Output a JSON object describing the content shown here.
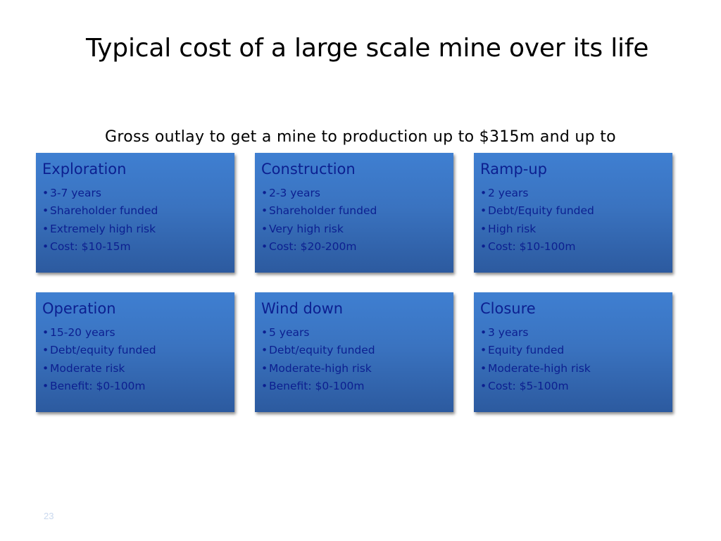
{
  "slide": {
    "title": "Typical cost of a large scale mine over its life",
    "subtitle": "Gross outlay to get a mine to production up to $315m and up to",
    "page_number": "23",
    "bullet_glyph": "•"
  },
  "cards": [
    {
      "title": "Exploration",
      "items": [
        "3-7 years",
        "Shareholder funded",
        "Extremely high risk",
        "Cost: $10-15m"
      ]
    },
    {
      "title": "Construction",
      "items": [
        "2-3 years",
        "Shareholder funded",
        "Very high risk",
        "Cost: $20-200m"
      ]
    },
    {
      "title": "Ramp-up",
      "items": [
        "2 years",
        "Debt/Equity funded",
        "High risk",
        "Cost: $10-100m"
      ]
    },
    {
      "title": "Operation",
      "items": [
        "15-20 years",
        "Debt/equity funded",
        "Moderate risk",
        "Benefit: $0-100m"
      ]
    },
    {
      "title": "Wind down",
      "items": [
        "5 years",
        "Debt/equity funded",
        "Moderate-high risk",
        "Benefit: $0-100m"
      ]
    },
    {
      "title": "Closure",
      "items": [
        "3 years",
        "Equity funded",
        "Moderate-high risk",
        "Cost: $5-100m"
      ]
    }
  ],
  "colors": {
    "card_top": "#3f7fd1",
    "card_bottom": "#2c5a9f",
    "card_text": "#0c1f90",
    "page_number": "#c9d8ee"
  }
}
